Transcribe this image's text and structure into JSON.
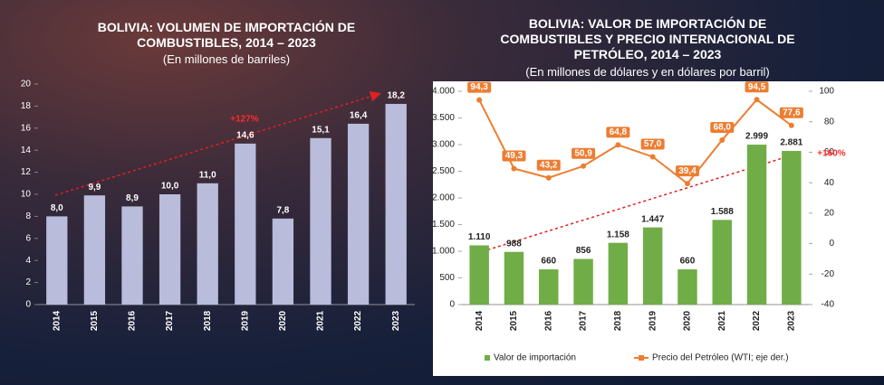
{
  "chart_data": [
    {
      "type": "bar",
      "title": "BOLIVIA: VOLUMEN DE IMPORTACIÓN DE COMBUSTIBLES, 2014 – 2023",
      "subtitle": "(En millones de barriles)",
      "categories": [
        "2014",
        "2015",
        "2016",
        "2017",
        "2018",
        "2019",
        "2020",
        "2021",
        "2022",
        "2023"
      ],
      "values": [
        8.0,
        9.9,
        8.9,
        10.0,
        11.0,
        14.6,
        7.8,
        15.1,
        16.4,
        18.2
      ],
      "value_labels": [
        "8,0",
        "9,9",
        "8,9",
        "10,0",
        "11,0",
        "14,6",
        "7,8",
        "15,1",
        "16,4",
        "18,2"
      ],
      "color": "#b9bddb",
      "ylim": [
        0,
        20
      ],
      "yticks": [
        0,
        2,
        4,
        6,
        8,
        10,
        12,
        14,
        16,
        18,
        20
      ],
      "annotation": "+127%",
      "grid": false
    },
    {
      "type": "bar",
      "title": "BOLIVIA: VALOR DE IMPORTACIÓN DE COMBUSTIBLES Y PRECIO INTERNACIONAL DE PETRÓLEO, 2014 – 2023",
      "subtitle": "(En millones de dólares y en dólares por barril)",
      "categories": [
        "2014",
        "2015",
        "2016",
        "2017",
        "2018",
        "2019",
        "2020",
        "2021",
        "2022",
        "2023"
      ],
      "series": [
        {
          "name": "Valor de importación",
          "color": "#70ad47",
          "values": [
            1110,
            988,
            660,
            856,
            1158,
            1447,
            660,
            1588,
            2999,
            2881
          ],
          "value_labels": [
            "1.110",
            "988",
            "660",
            "856",
            "1.158",
            "1.447",
            "660",
            "1.588",
            "2.999",
            "2.881"
          ]
        },
        {
          "name": "Precio del Petróleo (WTI; eje der.)",
          "color": "#ed7d31",
          "axis": "y2",
          "values": [
            94.3,
            49.3,
            43.2,
            50.9,
            64.8,
            57.0,
            39.4,
            68.0,
            94.5,
            77.6
          ],
          "value_labels": [
            "94,3",
            "49,3",
            "43,2",
            "50,9",
            "64,8",
            "57,0",
            "39,4",
            "68,0",
            "94,5",
            "77,6"
          ]
        }
      ],
      "ylim": [
        0,
        4000
      ],
      "yticks": [
        0,
        500,
        {
          "value": 1000,
          "label": "1.000"
        },
        {
          "value": 1500,
          "label": "1.500"
        },
        {
          "value": 2000,
          "label": "2.000"
        },
        {
          "value": 2500,
          "label": "2.500"
        },
        {
          "value": 3000,
          "label": "3.000"
        },
        {
          "value": 3500,
          "label": "3.500"
        },
        {
          "value": 4000,
          "label": "4.000"
        }
      ],
      "y2lim": [
        -40,
        100
      ],
      "y2ticks": [
        -40,
        -20,
        0,
        20,
        40,
        60,
        80,
        100
      ],
      "annotation": "+160%",
      "grid": false
    }
  ]
}
